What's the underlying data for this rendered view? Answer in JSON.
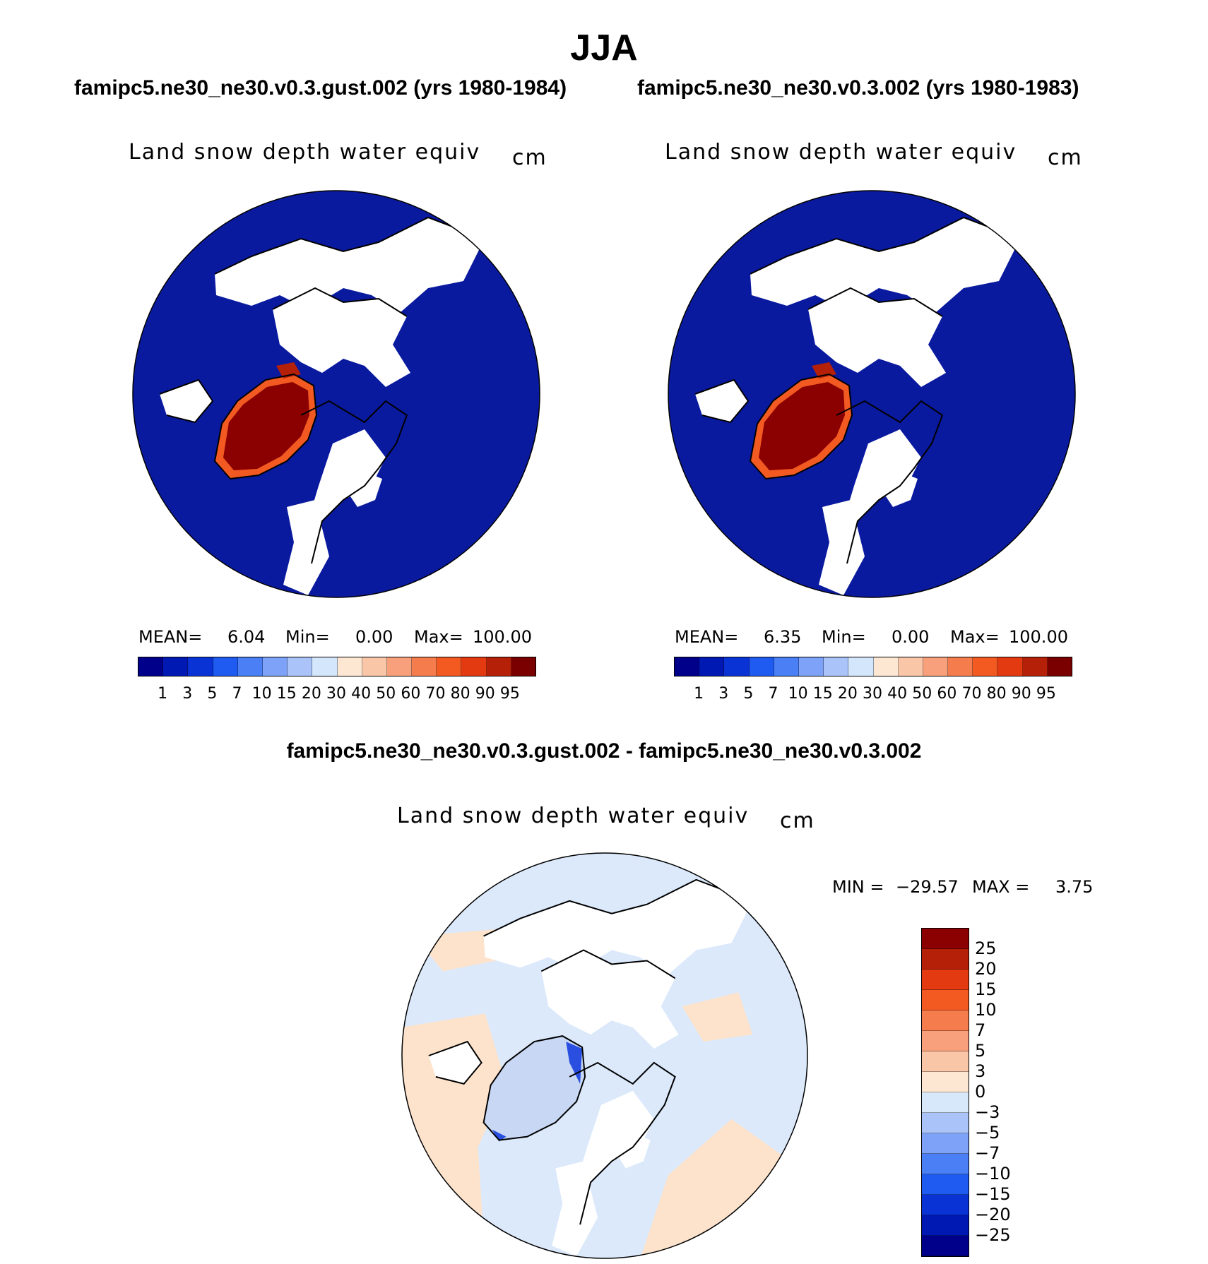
{
  "main_title": "JJA",
  "panels": {
    "left": {
      "case_title": "famipc5.ne30_ne30.v0.3.gust.002 (yrs 1980-1984)",
      "var_title": "Land snow depth water equiv",
      "units": "cm",
      "mean_label": "MEAN=",
      "mean_value": "6.04",
      "min_label": "Min=",
      "min_value": "0.00",
      "max_label": "Max=",
      "max_value": "100.00"
    },
    "right": {
      "case_title": "famipc5.ne30_ne30.v0.3.002 (yrs 1980-1983)",
      "var_title": "Land snow depth water equiv",
      "units": "cm",
      "mean_label": "MEAN=",
      "mean_value": "6.35",
      "min_label": "Min=",
      "min_value": "0.00",
      "max_label": "Max=",
      "max_value": "100.00"
    },
    "diff": {
      "case_title": "famipc5.ne30_ne30.v0.3.gust.002 - famipc5.ne30_ne30.v0.3.002",
      "var_title": "Land snow depth water equiv",
      "units": "cm",
      "min_label": "MIN =",
      "min_value": "−29.57",
      "max_label": "MAX =",
      "max_value": "3.75"
    }
  },
  "colors": {
    "abs_scale": [
      "#00008b",
      "#0019b3",
      "#0a33d6",
      "#1f5bf0",
      "#4a7ff5",
      "#7da2f7",
      "#aac3f9",
      "#d4e6fb",
      "#fde6d2",
      "#f9c6a8",
      "#f7a07b",
      "#f57c4c",
      "#f25a22",
      "#e33a12",
      "#b52008",
      "#7a0000"
    ],
    "diff_scale": [
      "#00008b",
      "#0019b3",
      "#0a33d6",
      "#1f5bf0",
      "#4a7ff5",
      "#7da2f7",
      "#aac3f9",
      "#d8e8fb",
      "#fde6d2",
      "#f9c6a8",
      "#f7a07b",
      "#f57c4c",
      "#f25a22",
      "#e33a12",
      "#b52008",
      "#8b0000"
    ],
    "ocean_abs": "#0a1a9e",
    "ocean_diff_warm": "#fde3cc",
    "ocean_diff_cool": "#dbe9fb",
    "land_white": "#ffffff"
  },
  "chart_data": [
    {
      "type": "heatmap",
      "title": "Land snow depth water equiv",
      "subtitle": "famipc5.ne30_ne30.v0.3.gust.002 (yrs 1980-1984)",
      "units": "cm",
      "projection": "north-polar-stereographic",
      "colorbar_levels": [
        "1",
        "3",
        "5",
        "7",
        "10",
        "15",
        "20",
        "30",
        "40",
        "50",
        "60",
        "70",
        "80",
        "90",
        "95"
      ],
      "stats": {
        "mean": 6.04,
        "min": 0.0,
        "max": 100.0
      }
    },
    {
      "type": "heatmap",
      "title": "Land snow depth water equiv",
      "subtitle": "famipc5.ne30_ne30.v0.3.002 (yrs 1980-1983)",
      "units": "cm",
      "projection": "north-polar-stereographic",
      "colorbar_levels": [
        "1",
        "3",
        "5",
        "7",
        "10",
        "15",
        "20",
        "30",
        "40",
        "50",
        "60",
        "70",
        "80",
        "90",
        "95"
      ],
      "stats": {
        "mean": 6.35,
        "min": 0.0,
        "max": 100.0
      }
    },
    {
      "type": "heatmap",
      "title": "Land snow depth water equiv",
      "subtitle": "famipc5.ne30_ne30.v0.3.gust.002 - famipc5.ne30_ne30.v0.3.002",
      "units": "cm",
      "projection": "north-polar-stereographic",
      "colorbar_levels": [
        "25",
        "20",
        "15",
        "10",
        "7",
        "5",
        "3",
        "0",
        "−3",
        "−5",
        "−7",
        "−10",
        "−15",
        "−20",
        "−25"
      ],
      "stats": {
        "min": -29.57,
        "max": 3.75
      }
    }
  ]
}
